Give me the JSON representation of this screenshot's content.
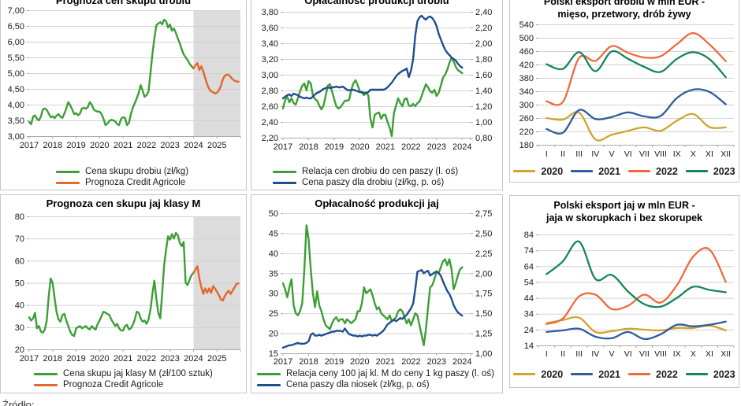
{
  "page": {
    "source_caption": "Źródło:"
  },
  "colors": {
    "green": "#3c9f35",
    "orange": "#e2682c",
    "blue": "#1f4e8f",
    "gold": "#d1a42e",
    "blue2": "#2e5c9e",
    "orange2": "#ec6b3d",
    "teal": "#17855c"
  },
  "chart_data": [
    {
      "type": "line",
      "title": "Prognoza cen skupu drobiu",
      "x_type": "years",
      "x_domain": [
        2017,
        2026
      ],
      "x_ticks": [
        "2017",
        "2018",
        "2019",
        "2020",
        "2021",
        "2022",
        "2023",
        "2024",
        "2025"
      ],
      "y_left": {
        "min": 3,
        "max": 7,
        "labels": [
          "7,00",
          "6,50",
          "6,00",
          "5,50",
          "5,00",
          "4,50",
          "4,00",
          "3,50",
          "3,00"
        ]
      },
      "forecast_from": 2024,
      "grid": true,
      "legend_position": "bottom",
      "series": [
        {
          "name": "Cena skupu drobiu (zł/kg)",
          "color": "green",
          "axis": "left",
          "x_start": 2017,
          "smooth": false,
          "values": [
            3.45,
            3.38,
            3.62,
            3.66,
            3.55,
            3.5,
            3.62,
            3.85,
            3.88,
            3.83,
            3.72,
            3.6,
            3.63,
            3.57,
            3.65,
            3.7,
            3.62,
            3.58,
            3.72,
            3.88,
            4.08,
            3.98,
            3.85,
            3.7,
            3.73,
            3.66,
            3.72,
            3.88,
            3.9,
            3.87,
            3.92,
            4.08,
            4.0,
            3.85,
            3.8,
            3.78,
            3.78,
            3.7,
            3.55,
            3.35,
            3.4,
            3.48,
            3.52,
            3.5,
            3.47,
            3.38,
            3.35,
            3.55,
            3.6,
            3.58,
            3.35,
            3.42,
            3.7,
            3.9,
            4.05,
            4.2,
            4.38,
            4.62,
            4.45,
            4.25,
            4.3,
            4.42,
            5.0,
            5.6,
            6.1,
            6.52,
            6.58,
            6.62,
            6.55,
            6.7,
            6.65,
            6.45,
            6.55,
            6.35,
            6.42,
            6.28,
            6.1,
            5.95,
            5.75,
            5.6,
            5.5,
            5.42,
            5.3,
            5.22,
            5.15
          ]
        },
        {
          "name": "Prognoza Credit Agricole",
          "color": "orange",
          "axis": "left",
          "x_start": 2024,
          "smooth": false,
          "values": [
            5.15,
            5.25,
            5.32,
            5.1,
            5.22,
            5.05,
            4.85,
            4.65,
            4.5,
            4.42,
            4.4,
            4.35,
            4.38,
            4.45,
            4.6,
            4.8,
            4.92,
            4.95,
            4.95,
            4.88,
            4.8,
            4.76,
            4.74,
            4.73
          ]
        }
      ]
    },
    {
      "type": "line",
      "title": "Opłacalność produkcji drobiu",
      "x_type": "years",
      "x_domain": [
        2017,
        2024.33
      ],
      "x_ticks": [
        "2017",
        "2018",
        "2019",
        "2020",
        "2021",
        "2022",
        "2023",
        "2024"
      ],
      "y_left": {
        "min": 2.2,
        "max": 3.8,
        "labels": [
          "3,80",
          "3,60",
          "3,40",
          "3,20",
          "3,00",
          "2,80",
          "2,60",
          "2,40",
          "2,20"
        ]
      },
      "y_right": {
        "min": 0.8,
        "max": 2.4,
        "labels": [
          "2,40",
          "2,20",
          "2,00",
          "1,80",
          "1,60",
          "1,40",
          "1,20",
          "1,00",
          "0,80"
        ]
      },
      "grid": true,
      "legend_position": "bottom",
      "series": [
        {
          "name": "Relacja cen drobiu do cen paszy (l. oś)",
          "color": "green",
          "axis": "left",
          "x_start": 2017,
          "smooth": false,
          "values": [
            2.57,
            2.68,
            2.72,
            2.65,
            2.7,
            2.64,
            2.62,
            2.7,
            2.79,
            2.86,
            2.89,
            2.8,
            2.92,
            2.89,
            2.74,
            2.69,
            2.67,
            2.61,
            2.56,
            2.61,
            2.73,
            2.86,
            2.88,
            2.79,
            2.69,
            2.6,
            2.57,
            2.59,
            2.63,
            2.67,
            2.67,
            2.68,
            2.81,
            2.89,
            2.93,
            2.87,
            2.79,
            2.77,
            2.74,
            2.77,
            2.74,
            2.44,
            2.33,
            2.49,
            2.51,
            2.52,
            2.44,
            2.49,
            2.49,
            2.4,
            2.33,
            2.22,
            2.51,
            2.61,
            2.7,
            2.64,
            2.6,
            2.69,
            2.7,
            2.61,
            2.6,
            2.63,
            2.6,
            2.64,
            2.66,
            2.73,
            2.81,
            2.88,
            2.84,
            2.79,
            2.77,
            2.81,
            2.73,
            2.77,
            2.86,
            2.96,
            3.0,
            3.06,
            3.15,
            3.22,
            3.17,
            3.1,
            3.06,
            3.04,
            3.02
          ]
        },
        {
          "name": "Cena paszy dla drobiu (zł/kg, p. oś)",
          "color": "blue",
          "axis": "right",
          "x_start": 2017,
          "smooth": false,
          "values": [
            1.3,
            1.32,
            1.34,
            1.35,
            1.33,
            1.36,
            1.35,
            1.34,
            1.32,
            1.31,
            1.3,
            1.31,
            1.3,
            1.3,
            1.32,
            1.35,
            1.37,
            1.38,
            1.4,
            1.42,
            1.43,
            1.44,
            1.43,
            1.44,
            1.44,
            1.45,
            1.44,
            1.44,
            1.45,
            1.43,
            1.41,
            1.4,
            1.41,
            1.41,
            1.4,
            1.39,
            1.38,
            1.38,
            1.37,
            1.37,
            1.38,
            1.41,
            1.41,
            1.41,
            1.41,
            1.41,
            1.41,
            1.41,
            1.42,
            1.44,
            1.47,
            1.5,
            1.54,
            1.58,
            1.61,
            1.63,
            1.65,
            1.66,
            1.68,
            1.57,
            1.65,
            1.8,
            2.1,
            2.28,
            2.33,
            2.35,
            2.32,
            2.3,
            2.33,
            2.34,
            2.32,
            2.28,
            2.22,
            2.12,
            2.05,
            1.98,
            1.92,
            1.88,
            1.85,
            1.82,
            1.8,
            1.78,
            1.74,
            1.71,
            1.69
          ]
        }
      ]
    },
    {
      "type": "line",
      "title_line1": "Polski eksport drobiu w mln EUR -",
      "title_line2": "mięso, przetwory, drób żywy",
      "x_type": "months",
      "x_ticks": [
        "I",
        "II",
        "III",
        "IV",
        "V",
        "VI",
        "VII",
        "VIII",
        "IX",
        "X",
        "XI",
        "XII"
      ],
      "y_left": {
        "min": 180,
        "max": 540,
        "labels": [
          "540",
          "500",
          "460",
          "420",
          "380",
          "340",
          "300",
          "260",
          "220",
          "180"
        ]
      },
      "grid": true,
      "legend_position": "bottom-inline",
      "series": [
        {
          "name": "2020",
          "color": "gold",
          "axis": "left",
          "smooth": true,
          "values": [
            260,
            255,
            276,
            196,
            210,
            222,
            232,
            222,
            252,
            272,
            233,
            232
          ]
        },
        {
          "name": "2021",
          "color": "blue2",
          "axis": "left",
          "smooth": true,
          "values": [
            227,
            216,
            284,
            257,
            263,
            277,
            265,
            266,
            320,
            345,
            338,
            301
          ]
        },
        {
          "name": "2022",
          "color": "orange2",
          "axis": "left",
          "smooth": true,
          "values": [
            310,
            308,
            440,
            431,
            475,
            455,
            441,
            445,
            481,
            514,
            480,
            430
          ]
        },
        {
          "name": "2023",
          "color": "teal",
          "axis": "left",
          "smooth": true,
          "values": [
            421,
            407,
            457,
            400,
            459,
            437,
            413,
            398,
            437,
            457,
            436,
            382
          ]
        }
      ]
    },
    {
      "type": "line",
      "title": "Prognoza cen skupu jaj klasy M",
      "x_type": "years",
      "x_domain": [
        2017,
        2026
      ],
      "x_ticks": [
        "2017",
        "2018",
        "2019",
        "2020",
        "2021",
        "2022",
        "2023",
        "2024",
        "2025"
      ],
      "y_left": {
        "min": 20,
        "max": 80,
        "labels": [
          "80",
          "70",
          "60",
          "50",
          "40",
          "30",
          "20"
        ]
      },
      "forecast_from": 2024,
      "grid": true,
      "legend_position": "bottom",
      "series": [
        {
          "name": "Cena skupu jaj klasy M (zł/100 sztuk)",
          "color": "green",
          "axis": "left",
          "x_start": 2017,
          "smooth": false,
          "values": [
            34.5,
            33.0,
            34.0,
            36.5,
            29.5,
            30.5,
            28.0,
            27.5,
            29.0,
            33.0,
            44.0,
            52.0,
            50.0,
            43.0,
            37.0,
            33.5,
            32.5,
            35.5,
            36.0,
            33.0,
            30.5,
            28.0,
            26.5,
            26.0,
            29.5,
            30.0,
            30.5,
            29.5,
            30.0,
            30.5,
            29.5,
            29.0,
            30.5,
            29.5,
            29.0,
            31.5,
            33.0,
            35.0,
            37.0,
            36.5,
            36.0,
            35.5,
            33.5,
            32.0,
            30.5,
            31.5,
            29.5,
            28.5,
            28.5,
            30.5,
            31.0,
            29.0,
            29.5,
            31.0,
            33.5,
            37.0,
            36.5,
            34.0,
            32.5,
            33.0,
            31.5,
            33.5,
            38.0,
            45.0,
            51.0,
            43.0,
            36.5,
            34.0,
            45.0,
            58.0,
            65.0,
            71.0,
            69.5,
            72.0,
            70.0,
            72.5,
            71.5,
            68.0,
            66.5,
            68.5,
            50.0,
            49.0,
            51.5,
            53.5,
            54.5
          ]
        },
        {
          "name": "Prognoza Credit Agricole",
          "color": "orange",
          "axis": "left",
          "x_start": 2024,
          "smooth": false,
          "values": [
            54.5,
            56.0,
            57.5,
            52.0,
            48.0,
            45.0,
            47.5,
            45.5,
            47.5,
            45.5,
            48.5,
            47.5,
            46.0,
            44.5,
            42.5,
            42.0,
            44.0,
            45.5,
            46.5,
            45.0,
            46.5,
            48.0,
            49.5,
            49.8
          ]
        }
      ]
    },
    {
      "type": "line",
      "title": "Opłacalność produkcji jaj",
      "x_type": "years",
      "x_domain": [
        2017,
        2024.33
      ],
      "x_ticks": [
        "2017",
        "2018",
        "2019",
        "2020",
        "2021",
        "2022",
        "2023",
        "2024"
      ],
      "y_left": {
        "min": 15,
        "max": 50,
        "labels": [
          "50",
          "45",
          "40",
          "35",
          "30",
          "25",
          "20",
          "15"
        ]
      },
      "y_right": {
        "min": 1.0,
        "max": 2.75,
        "labels": [
          "2,75",
          "2,50",
          "2,25",
          "2,00",
          "1,75",
          "1,50",
          "1,25",
          "1,00"
        ]
      },
      "grid": true,
      "legend_position": "bottom",
      "series": [
        {
          "name": "Relacja ceny 100 jaj kl. M do ceny 1 kg paszy (l. oś)",
          "color": "green",
          "axis": "left",
          "x_start": 2017,
          "smooth": false,
          "values": [
            32.5,
            31.0,
            29.0,
            31.5,
            33.5,
            27.0,
            25.0,
            24.5,
            25.5,
            27.5,
            36.0,
            47.0,
            43.5,
            36.0,
            30.0,
            26.5,
            30.5,
            27.0,
            25.5,
            23.5,
            22.0,
            21.5,
            21.0,
            22.5,
            23.5,
            24.0,
            23.0,
            23.5,
            23.5,
            22.5,
            23.5,
            23.0,
            22.5,
            23.0,
            23.5,
            25.5,
            25.5,
            27.5,
            31.5,
            30.0,
            30.5,
            31.0,
            29.5,
            27.5,
            26.0,
            26.5,
            25.0,
            24.5,
            24.0,
            23.5,
            24.5,
            23.0,
            23.5,
            24.0,
            25.5,
            26.0,
            25.5,
            24.0,
            22.5,
            23.5,
            22.0,
            23.5,
            25.0,
            24.5,
            22.0,
            19.5,
            17.0,
            21.0,
            26.5,
            31.5,
            32.0,
            33.5,
            35.5,
            35.0,
            36.5,
            38.0,
            38.5,
            37.0,
            38.5,
            36.0,
            31.0,
            32.5,
            34.5,
            36.0,
            36.5
          ]
        },
        {
          "name": "Cena paszy dla niosek (zł/kg, p. oś)",
          "color": "blue",
          "axis": "right",
          "x_start": 2017,
          "smooth": false,
          "values": [
            1.07,
            1.08,
            1.09,
            1.1,
            1.1,
            1.11,
            1.12,
            1.13,
            1.12,
            1.12,
            1.12,
            1.13,
            1.15,
            1.23,
            1.25,
            1.22,
            1.22,
            1.23,
            1.22,
            1.23,
            1.24,
            1.25,
            1.26,
            1.27,
            1.27,
            1.28,
            1.28,
            1.28,
            1.27,
            1.31,
            1.27,
            1.24,
            1.23,
            1.22,
            1.22,
            1.21,
            1.22,
            1.21,
            1.22,
            1.22,
            1.23,
            1.23,
            1.22,
            1.23,
            1.22,
            1.24,
            1.26,
            1.28,
            1.32,
            1.36,
            1.38,
            1.4,
            1.42,
            1.4,
            1.42,
            1.44,
            1.43,
            1.46,
            1.48,
            1.52,
            1.56,
            1.62,
            1.8,
            2.02,
            2.03,
            2.04,
            2.0,
            2.02,
            2.03,
            1.97,
            1.99,
            2.01,
            2.02,
            2.0,
            1.97,
            1.9,
            1.84,
            1.78,
            1.74,
            1.68,
            1.6,
            1.55,
            1.51,
            1.49,
            1.47
          ]
        }
      ]
    },
    {
      "type": "line",
      "title_line1": "Polski eksport jaj  w mln EUR -",
      "title_line2": "jaja w skorupkach i bez skorupek",
      "x_type": "months",
      "x_ticks": [
        "I",
        "II",
        "III",
        "IV",
        "V",
        "VI",
        "VII",
        "VIII",
        "IX",
        "X",
        "XI",
        "XII"
      ],
      "y_left": {
        "min": 14,
        "max": 84,
        "labels": [
          "84",
          "74",
          "64",
          "54",
          "44",
          "34",
          "24",
          "14"
        ]
      },
      "grid": true,
      "legend_position": "bottom-inline",
      "series": [
        {
          "name": "2020",
          "color": "gold",
          "axis": "left",
          "smooth": true,
          "values": [
            28,
            30,
            31.5,
            22.5,
            23,
            24.5,
            24,
            23.5,
            25,
            25,
            26.5,
            23.5
          ]
        },
        {
          "name": "2021",
          "color": "blue2",
          "axis": "left",
          "smooth": true,
          "values": [
            22.5,
            23.5,
            24.5,
            19.5,
            18.5,
            22.5,
            18,
            21,
            27,
            26,
            27,
            29
          ]
        },
        {
          "name": "2022",
          "color": "orange2",
          "axis": "left",
          "smooth": true,
          "values": [
            27.5,
            31,
            45,
            46,
            37,
            39,
            46,
            41,
            52,
            70,
            74.5,
            54
          ]
        },
        {
          "name": "2023",
          "color": "teal",
          "axis": "left",
          "smooth": true,
          "values": [
            59,
            67,
            79.5,
            56,
            58.5,
            48,
            40,
            38.5,
            44,
            51,
            49,
            47.5
          ]
        }
      ]
    }
  ]
}
